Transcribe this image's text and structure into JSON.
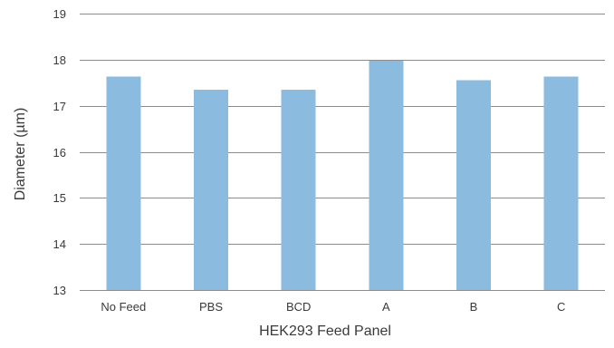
{
  "chart_data": {
    "type": "bar",
    "title": "",
    "xlabel": "HEK293 Feed Panel",
    "ylabel": "Diameter (µm)",
    "categories": [
      "No Feed",
      "PBS",
      "BCD",
      "A",
      "B",
      "C"
    ],
    "values": [
      17.63,
      17.35,
      17.35,
      17.98,
      17.55,
      17.63
    ],
    "ylim": [
      13,
      19
    ],
    "yticks": [
      13,
      14,
      15,
      16,
      17,
      18,
      19
    ],
    "grid": true,
    "legend": "none",
    "colors": {
      "bar": "#8bbbdf",
      "grid": "#8c8c8c",
      "text": "#3a3a3a"
    }
  }
}
